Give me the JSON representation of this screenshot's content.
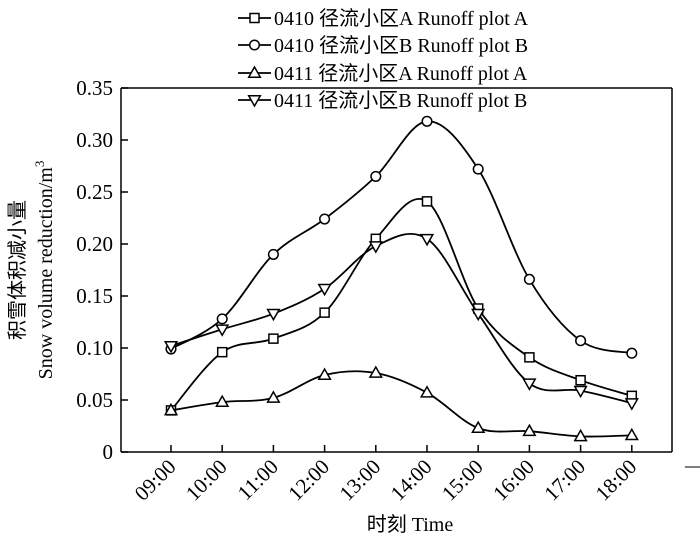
{
  "chart_data": {
    "type": "line",
    "categories": [
      "09:00",
      "10:00",
      "11:00",
      "12:00",
      "13:00",
      "14:00",
      "15:00",
      "16:00",
      "17:00",
      "18:00"
    ],
    "series": [
      {
        "name": "0410 径流小区A Runoff plot A",
        "marker": "square",
        "values": [
          0.04,
          0.096,
          0.109,
          0.134,
          0.205,
          0.241,
          0.138,
          0.091,
          0.069,
          0.054
        ]
      },
      {
        "name": "0410 径流小区B Runoff plot B",
        "marker": "circle",
        "values": [
          0.099,
          0.128,
          0.19,
          0.224,
          0.265,
          0.318,
          0.272,
          0.166,
          0.107,
          0.095
        ]
      },
      {
        "name": "0411 径流小区A Runoff plot A",
        "marker": "triangle-up",
        "values": [
          0.04,
          0.048,
          0.052,
          0.074,
          0.076,
          0.057,
          0.023,
          0.02,
          0.015,
          0.016
        ]
      },
      {
        "name": "0411 径流小区B Runoff plot B",
        "marker": "triangle-down",
        "values": [
          0.102,
          0.118,
          0.133,
          0.157,
          0.198,
          0.205,
          0.133,
          0.066,
          0.059,
          0.047
        ]
      }
    ],
    "xlabel": "时刻 Time",
    "ylabel_cn": "积雪体积减小量",
    "ylabel_en": "Snow volume reduction/m",
    "ylabel_sup": "3",
    "yticks": [
      "0",
      "0.05",
      "0.10",
      "0.15",
      "0.20",
      "0.25",
      "0.30",
      "0.35"
    ],
    "ylim": [
      0,
      0.35
    ],
    "axis_end_mark": "—",
    "grid": false,
    "legend_position": "top"
  }
}
